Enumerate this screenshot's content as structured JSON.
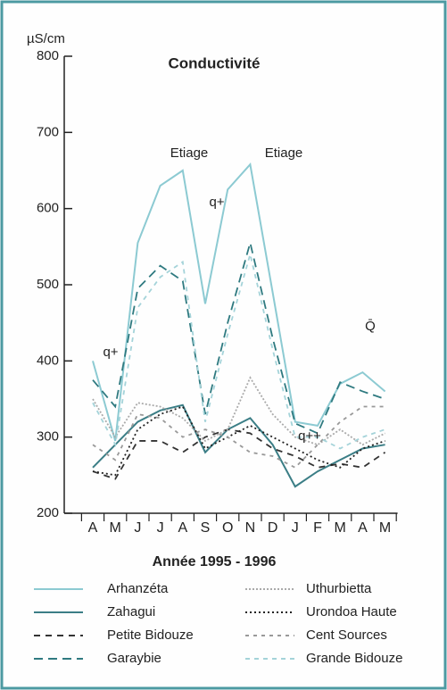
{
  "chart_data": {
    "type": "line",
    "title": "Conductivité",
    "y_unit": "µS/cm",
    "x_label": "Année 1995 - 1996",
    "categories": [
      "A",
      "M",
      "J",
      "J",
      "A",
      "S",
      "O",
      "N",
      "D",
      "J",
      "F",
      "M",
      "A",
      "M"
    ],
    "ylim": [
      200,
      800
    ],
    "yticks": [
      200,
      300,
      400,
      500,
      600,
      700,
      800
    ],
    "annotations": [
      "q+",
      "Etiage",
      "q+",
      "Etiage",
      "q++",
      "Q̄"
    ],
    "series": [
      {
        "name": "Arhanzéta",
        "color": "#8ccad2",
        "dash": "none",
        "values": [
          400,
          295,
          555,
          630,
          650,
          475,
          625,
          658,
          490,
          320,
          315,
          370,
          385,
          360
        ]
      },
      {
        "name": "Zahagui",
        "color": "#3b7e86",
        "dash": "none",
        "values": [
          260,
          290,
          320,
          335,
          342,
          280,
          310,
          325,
          290,
          235,
          255,
          270,
          285,
          290
        ]
      },
      {
        "name": "Petite Bidouze",
        "color": "#333333",
        "dash": "7,6",
        "values": [
          255,
          245,
          295,
          295,
          280,
          300,
          310,
          305,
          285,
          275,
          260,
          265,
          260,
          280
        ]
      },
      {
        "name": "Garaybie",
        "color": "#2f7a80",
        "dash": "10,6",
        "values": [
          375,
          340,
          495,
          525,
          505,
          330,
          450,
          555,
          430,
          318,
          305,
          372,
          360,
          350
        ]
      },
      {
        "name": "Uthurbietta",
        "color": "#aaaaaa",
        "dash": "2,2",
        "values": [
          350,
          300,
          345,
          340,
          325,
          295,
          310,
          378,
          330,
          300,
          290,
          310,
          290,
          305
        ]
      },
      {
        "name": "Urondoa Haute",
        "color": "#222222",
        "dash": "2,3",
        "values": [
          255,
          250,
          310,
          330,
          340,
          285,
          300,
          315,
          300,
          285,
          270,
          260,
          285,
          295
        ]
      },
      {
        "name": "Cent Sources",
        "color": "#999999",
        "dash": "4,5",
        "values": [
          290,
          270,
          330,
          325,
          300,
          310,
          300,
          280,
          275,
          260,
          290,
          320,
          340,
          340
        ]
      },
      {
        "name": "Grande Bidouze",
        "color": "#a4d3d9",
        "dash": "5,5",
        "values": [
          345,
          290,
          470,
          510,
          530,
          320,
          435,
          540,
          415,
          300,
          300,
          285,
          300,
          310
        ]
      }
    ]
  }
}
